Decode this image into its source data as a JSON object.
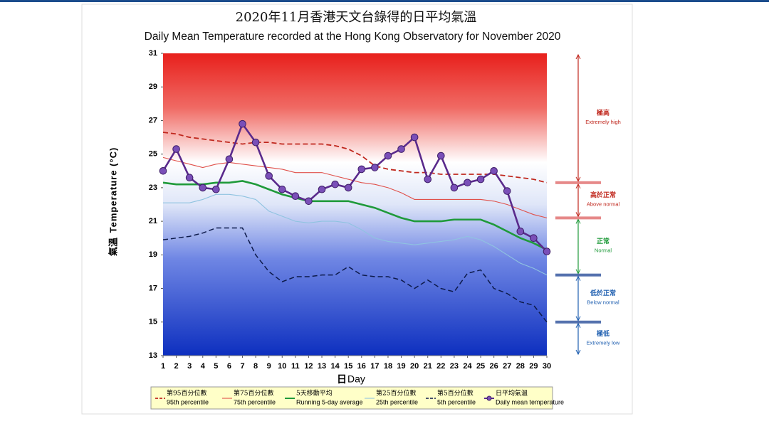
{
  "chart_data": {
    "type": "line",
    "title_zh": "2020年11月香港天文台錄得的日平均氣溫",
    "title": "Daily Mean Temperature recorded at the Hong Kong Observatory for November 2020",
    "ylabel_zh": "氣溫",
    "ylabel": "Temperature (°C)",
    "xlabel_zh": "日",
    "xlabel": "Day",
    "x": [
      1,
      2,
      3,
      4,
      5,
      6,
      7,
      8,
      9,
      10,
      11,
      12,
      13,
      14,
      15,
      16,
      17,
      18,
      19,
      20,
      21,
      22,
      23,
      24,
      25,
      26,
      27,
      28,
      29,
      30
    ],
    "xlim": [
      1,
      30
    ],
    "ylim": [
      13,
      31
    ],
    "yticks": [
      13,
      15,
      17,
      19,
      21,
      23,
      25,
      27,
      29,
      31
    ],
    "series": [
      {
        "name_zh": "第95百分位數",
        "name": "95th percentile",
        "color": "#c0281e",
        "dashed": true,
        "width": 1.8,
        "values": [
          26.3,
          26.2,
          26.0,
          25.9,
          25.8,
          25.7,
          25.6,
          25.7,
          25.7,
          25.6,
          25.6,
          25.6,
          25.6,
          25.5,
          25.3,
          24.9,
          24.3,
          24.1,
          24.0,
          23.9,
          23.9,
          23.8,
          23.8,
          23.8,
          23.8,
          23.8,
          23.7,
          23.6,
          23.5,
          23.3
        ]
      },
      {
        "name_zh": "第75百分位數",
        "name": "75th percentile",
        "color": "#e0504a",
        "dashed": false,
        "width": 1.1,
        "values": [
          24.8,
          24.6,
          24.4,
          24.2,
          24.4,
          24.5,
          24.4,
          24.3,
          24.2,
          24.1,
          23.9,
          23.9,
          23.9,
          23.7,
          23.5,
          23.3,
          23.2,
          23.0,
          22.7,
          22.3,
          22.3,
          22.3,
          22.3,
          22.3,
          22.3,
          22.2,
          22.0,
          21.7,
          21.4,
          21.2
        ]
      },
      {
        "name_zh": "5天移動平均",
        "name": "Running 5-day average",
        "color": "#1f9a3a",
        "dashed": false,
        "width": 2.6,
        "values": [
          23.3,
          23.2,
          23.2,
          23.2,
          23.3,
          23.3,
          23.4,
          23.2,
          22.9,
          22.6,
          22.4,
          22.2,
          22.2,
          22.2,
          22.2,
          22.0,
          21.8,
          21.5,
          21.2,
          21.0,
          21.0,
          21.0,
          21.1,
          21.1,
          21.1,
          20.8,
          20.4,
          20.0,
          19.7,
          19.3
        ]
      },
      {
        "name_zh": "第25百分位數",
        "name": "25th percentile",
        "color": "#8fc3e0",
        "dashed": false,
        "width": 1.1,
        "values": [
          22.1,
          22.1,
          22.1,
          22.3,
          22.6,
          22.6,
          22.5,
          22.3,
          21.6,
          21.3,
          21.0,
          20.9,
          21.0,
          21.0,
          20.9,
          20.5,
          20.0,
          19.8,
          19.7,
          19.6,
          19.7,
          19.8,
          19.9,
          20.1,
          19.9,
          19.5,
          19.0,
          18.5,
          18.2,
          17.8
        ]
      },
      {
        "name_zh": "第5百分位數",
        "name": "5th percentile",
        "color": "#0d1a4a",
        "dashed": true,
        "width": 1.5,
        "values": [
          19.9,
          20.0,
          20.1,
          20.3,
          20.6,
          20.6,
          20.6,
          19.0,
          18.0,
          17.4,
          17.7,
          17.7,
          17.8,
          17.8,
          18.3,
          17.8,
          17.7,
          17.7,
          17.5,
          17.0,
          17.5,
          17.0,
          16.8,
          17.9,
          18.1,
          17.0,
          16.7,
          16.2,
          16.0,
          15.0
        ]
      },
      {
        "name_zh": "日平均氣溫",
        "name": "Daily mean temperature",
        "color": "#5a2a8c",
        "dashed": false,
        "width": 2.6,
        "markers": true,
        "values": [
          24.0,
          25.3,
          23.6,
          23.0,
          22.9,
          24.7,
          26.8,
          25.7,
          23.7,
          22.9,
          22.5,
          22.2,
          22.9,
          23.2,
          23.0,
          24.1,
          24.2,
          24.9,
          25.3,
          26.0,
          23.5,
          24.9,
          23.0,
          23.3,
          23.5,
          24.0,
          22.8,
          20.4,
          20.0,
          19.2
        ]
      }
    ],
    "bands": [
      {
        "label_zh": "極高",
        "label": "Extremely high",
        "color": "#c0281e"
      },
      {
        "label_zh": "高於正常",
        "label": "Above normal",
        "color": "#c0281e"
      },
      {
        "label_zh": "正常",
        "label": "Normal",
        "color": "#1f9a3a"
      },
      {
        "label_zh": "低於正常",
        "label": "Below normal",
        "color": "#1f5fb0"
      },
      {
        "label_zh": "極低",
        "label": "Extremely low",
        "color": "#1f5fb0"
      }
    ]
  }
}
